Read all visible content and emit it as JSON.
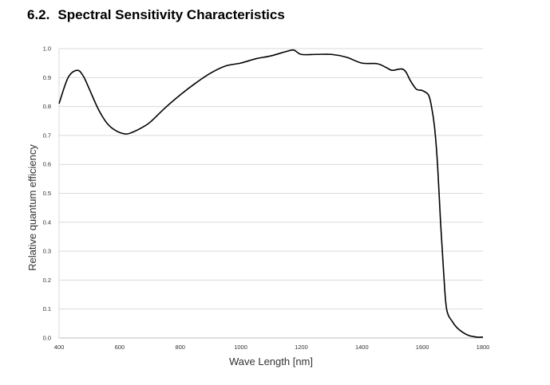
{
  "heading": {
    "number": "6.2.",
    "title": "Spectral Sensitivity Characteristics"
  },
  "chart_data": {
    "type": "line",
    "title": "",
    "xlabel": "Wave Length [nm]",
    "ylabel": "Relative quantum efficiency",
    "xlim": [
      400,
      1800
    ],
    "ylim": [
      0,
      1.0
    ],
    "x_ticks": [
      "400",
      "600",
      "800",
      "1000",
      "1200",
      "1400",
      "1600",
      "1800"
    ],
    "y_ticks": [
      "0.0",
      "0.1",
      "0.2",
      "0.3",
      "0.4",
      "0.5",
      "0.6",
      "0.7",
      "0.8",
      "0.9",
      "1.0"
    ],
    "grid": "horizontal",
    "line_color": "#000000",
    "grid_color": "#d9d9d9",
    "series": [
      {
        "x": [
          400,
          430,
          460,
          480,
          500,
          530,
          560,
          590,
          620,
          640,
          670,
          700,
          750,
          800,
          850,
          900,
          950,
          1000,
          1050,
          1100,
          1150,
          1175,
          1200,
          1250,
          1300,
          1350,
          1400,
          1450,
          1480,
          1500,
          1530,
          1545,
          1560,
          1580,
          1600,
          1620,
          1630,
          1640,
          1650,
          1660,
          1670,
          1680,
          1700,
          1720,
          1750,
          1780,
          1800
        ],
        "y": [
          0.81,
          0.9,
          0.925,
          0.905,
          0.86,
          0.79,
          0.74,
          0.715,
          0.705,
          0.71,
          0.725,
          0.745,
          0.795,
          0.84,
          0.88,
          0.915,
          0.94,
          0.95,
          0.965,
          0.975,
          0.99,
          0.995,
          0.98,
          0.98,
          0.98,
          0.97,
          0.95,
          0.948,
          0.935,
          0.925,
          0.93,
          0.92,
          0.89,
          0.86,
          0.855,
          0.84,
          0.8,
          0.73,
          0.6,
          0.4,
          0.23,
          0.1,
          0.055,
          0.03,
          0.01,
          0.003,
          0.003
        ]
      }
    ]
  }
}
